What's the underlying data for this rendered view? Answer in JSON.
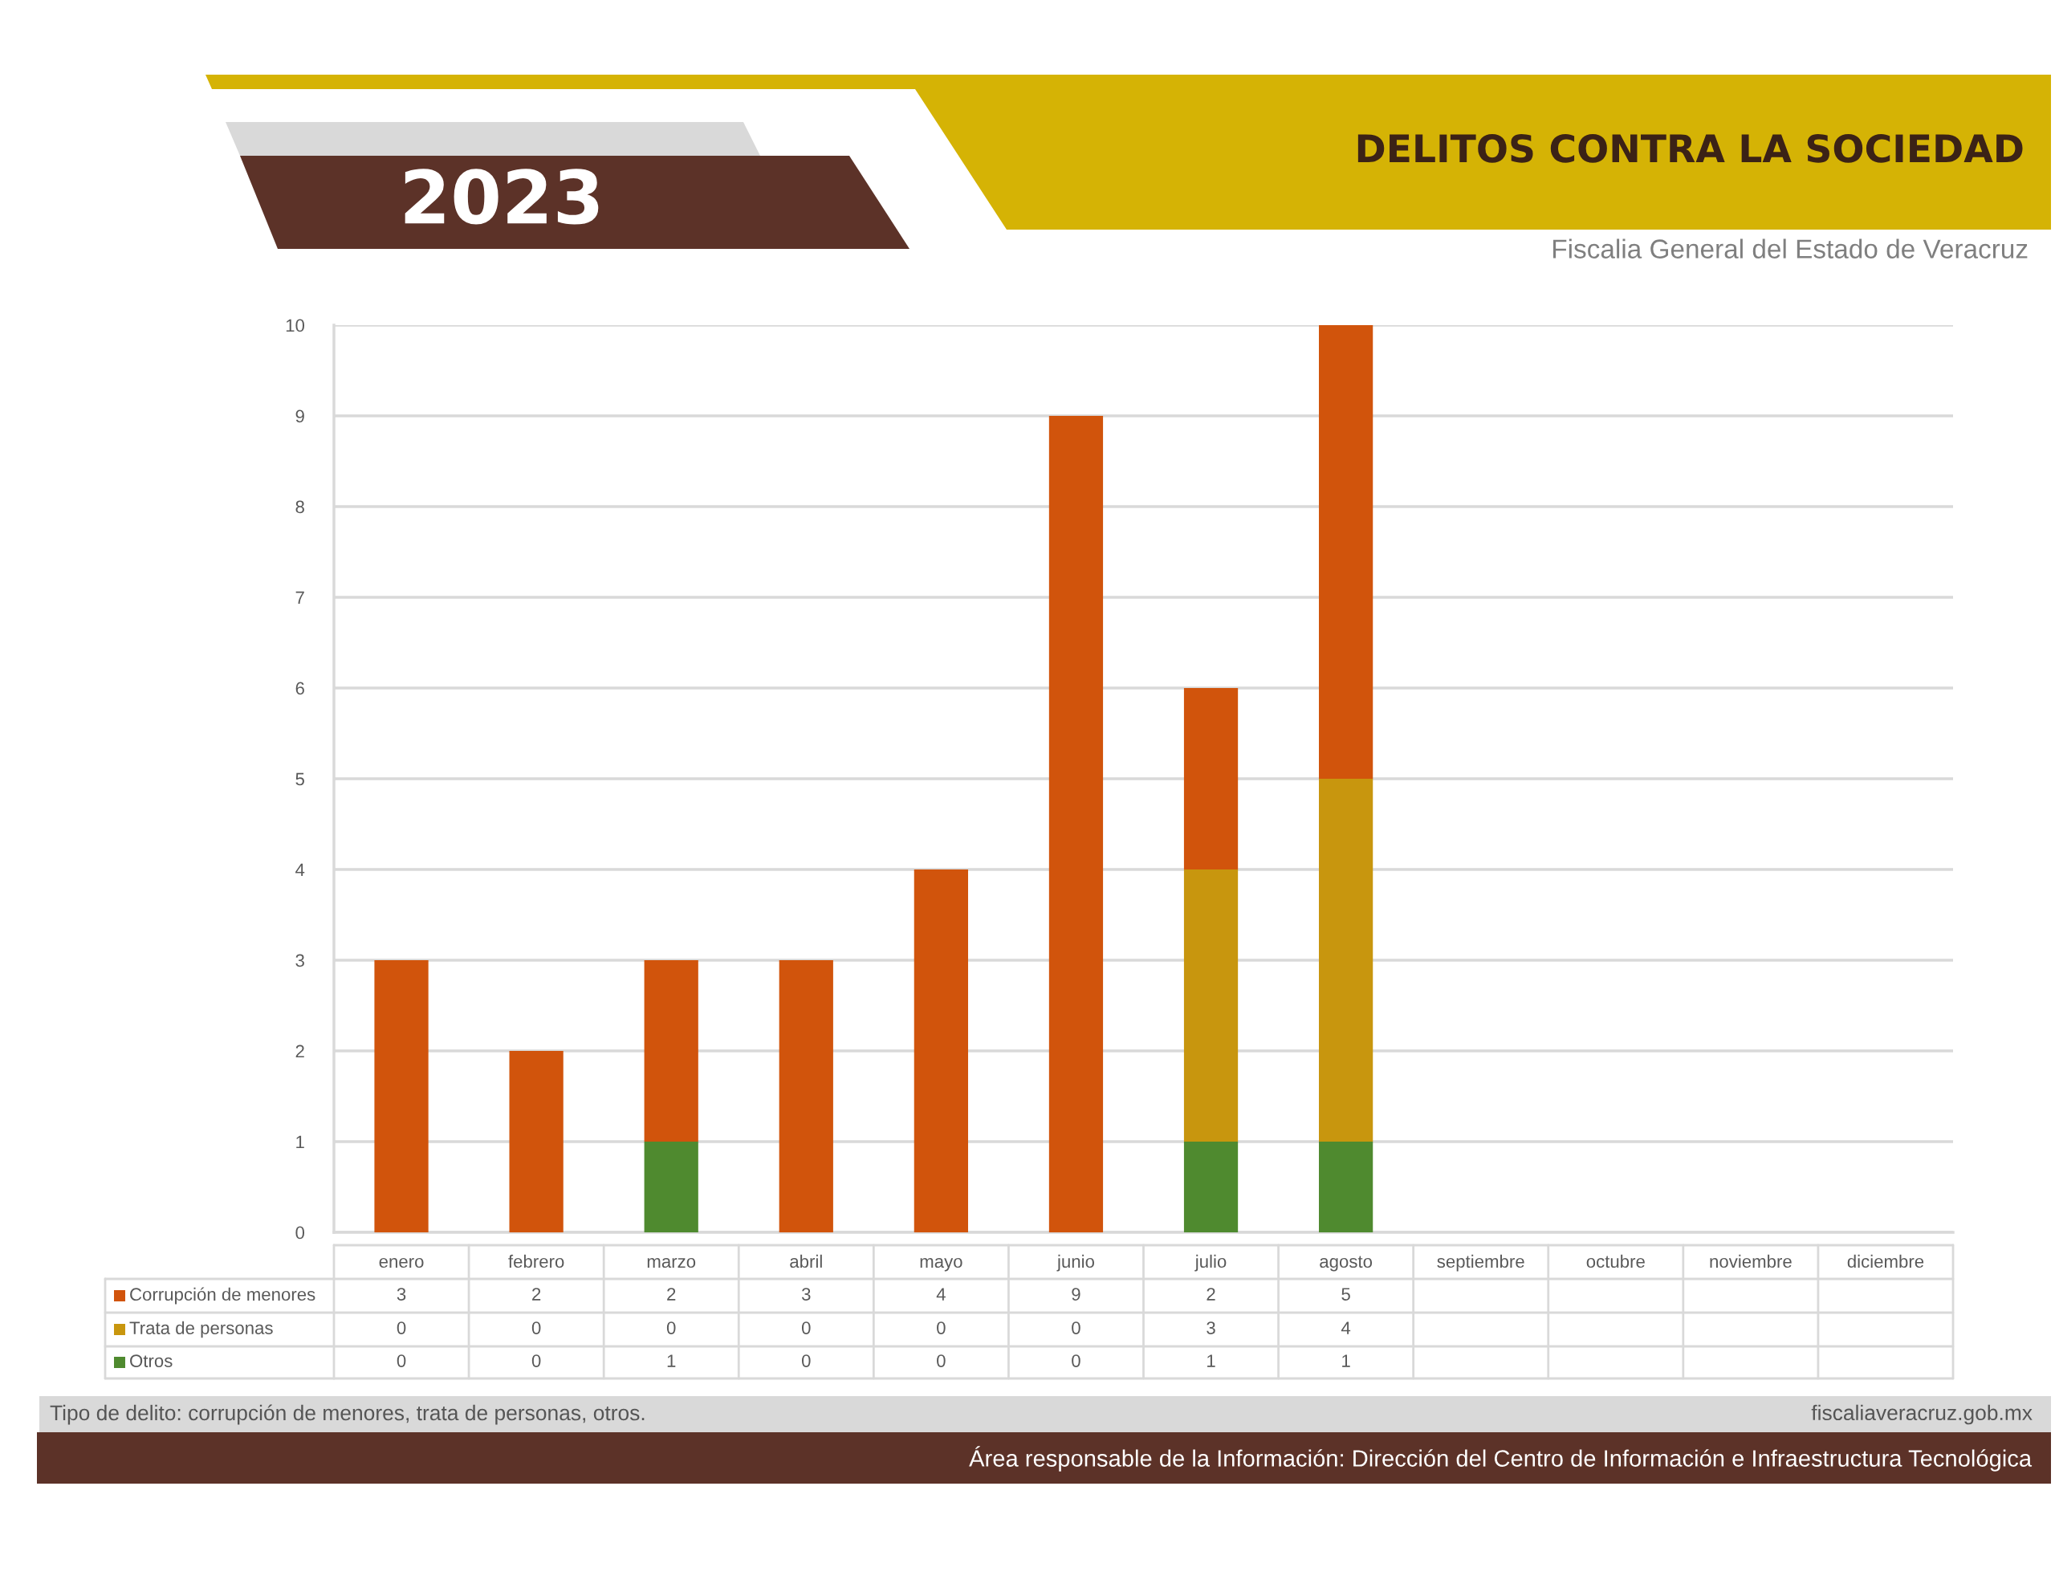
{
  "chart_data": {
    "type": "bar",
    "title": "DELITOS CONTRA LA SOCIEDAD",
    "subtitle": "Fiscalia General del Estado de Veracruz",
    "categories": [
      "enero",
      "febrero",
      "marzo",
      "abril",
      "mayo",
      "junio",
      "julio",
      "agosto",
      "septiembre",
      "octubre",
      "noviembre",
      "diciembre"
    ],
    "series": [
      {
        "name": "Otros",
        "color": "#4f8a2f",
        "values": [
          0,
          0,
          1,
          0,
          0,
          0,
          1,
          1,
          null,
          null,
          null,
          null
        ]
      },
      {
        "name": "Trata de personas",
        "color": "#c8960e",
        "values": [
          0,
          0,
          0,
          0,
          0,
          0,
          3,
          4,
          null,
          null,
          null,
          null
        ]
      },
      {
        "name": "Corrupción de menores",
        "color": "#d1540c",
        "values": [
          3,
          2,
          2,
          3,
          4,
          9,
          2,
          5,
          null,
          null,
          null,
          null
        ]
      }
    ],
    "stacked": true,
    "ylim": [
      0,
      10
    ],
    "yticks": [
      0,
      1,
      2,
      3,
      4,
      5,
      6,
      7,
      8,
      9,
      10
    ],
    "grid": "y",
    "legend": "bottom",
    "data_labels": true,
    "annotations": [
      "2023",
      "Tipo de delito: corrupción de menores, trata de personas, otros.",
      "fiscaliaveracruz.gob.mx",
      "Área responsable de la Información: Dirección del Centro de Información e Infraestructura Tecnológica"
    ]
  }
}
